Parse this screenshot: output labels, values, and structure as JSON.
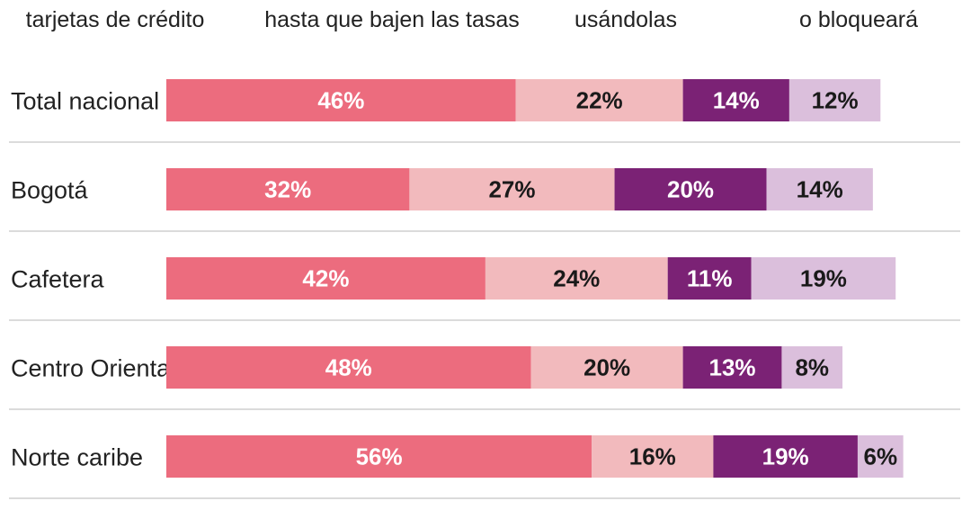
{
  "chart_data": {
    "type": "bar",
    "orientation": "horizontal",
    "stacked": true,
    "value_format": "percent",
    "legend_headers": [
      {
        "lines": [
          "tarjetas de crédito"
        ]
      },
      {
        "lines": [
          "hasta que bajen las tasas"
        ]
      },
      {
        "lines": [
          "usándolas"
        ]
      },
      {
        "lines": [
          "o bloqueará"
        ]
      }
    ],
    "categories": [
      "Total nacional",
      "Bogotá",
      "Cafetera",
      "Centro Oriental",
      "Norte caribe"
    ],
    "series": [
      {
        "values": [
          46,
          32,
          42,
          48,
          56
        ],
        "color": "#ec6c7e",
        "label_color": "#ffffff"
      },
      {
        "values": [
          22,
          27,
          24,
          20,
          16
        ],
        "color": "#f2babd",
        "label_color": "#1a1a1a"
      },
      {
        "values": [
          14,
          20,
          11,
          13,
          19
        ],
        "color": "#7b2275",
        "label_color": "#ffffff"
      },
      {
        "values": [
          12,
          14,
          19,
          8,
          6
        ],
        "color": "#dbbfdc",
        "label_color": "#1a1a1a"
      }
    ],
    "grid": false,
    "row_separators": true
  }
}
